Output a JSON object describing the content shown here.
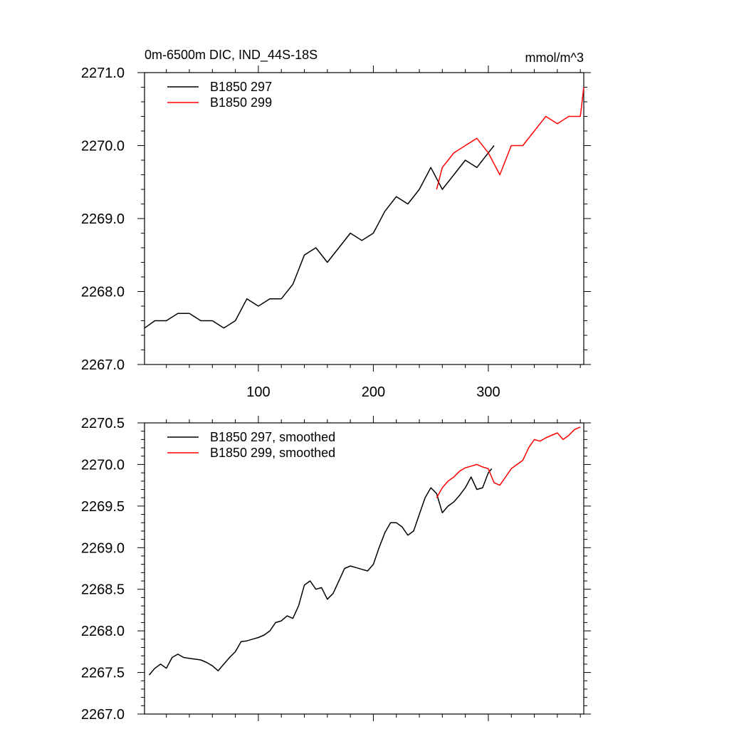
{
  "chart_data": [
    {
      "type": "line",
      "title": "0m-6500m DIC, IND_44S-18S",
      "units": "mmol/m^3",
      "xlabel": "",
      "ylabel": "",
      "xlim": [
        1,
        383
      ],
      "ylim": [
        2267.0,
        2271.0
      ],
      "xticks": [
        100,
        200,
        300
      ],
      "xtick_labels": [
        "100",
        "200",
        "300"
      ],
      "yticks": [
        2267.0,
        2268.0,
        2269.0,
        2270.0,
        2271.0
      ],
      "ytick_labels": [
        "2267.0",
        "2268.0",
        "2269.0",
        "2270.0",
        "2271.0"
      ],
      "legend_position": "top-left",
      "series": [
        {
          "name": "B1850 297",
          "color": "#000000",
          "x": [
            1,
            10,
            20,
            30,
            40,
            50,
            60,
            70,
            80,
            90,
            100,
            110,
            120,
            130,
            140,
            150,
            160,
            170,
            180,
            190,
            200,
            210,
            220,
            230,
            240,
            250,
            260,
            270,
            280,
            290,
            300,
            305
          ],
          "values": [
            2267.5,
            2267.6,
            2267.6,
            2267.7,
            2267.7,
            2267.6,
            2267.6,
            2267.5,
            2267.6,
            2267.9,
            2267.8,
            2267.9,
            2267.9,
            2268.1,
            2268.5,
            2268.6,
            2268.4,
            2268.6,
            2268.8,
            2268.7,
            2268.8,
            2269.1,
            2269.3,
            2269.2,
            2269.4,
            2269.7,
            2269.4,
            2269.6,
            2269.8,
            2269.7,
            2269.9,
            2270.0
          ]
        },
        {
          "name": "B1850 299",
          "color": "#ff0000",
          "x": [
            255,
            260,
            270,
            280,
            290,
            300,
            310,
            320,
            330,
            340,
            350,
            360,
            370,
            380,
            383
          ],
          "values": [
            2269.4,
            2269.7,
            2269.9,
            2270.0,
            2270.1,
            2269.9,
            2269.6,
            2270.0,
            2270.0,
            2270.2,
            2270.4,
            2270.3,
            2270.4,
            2270.4,
            2270.8
          ]
        }
      ]
    },
    {
      "type": "line",
      "title": "",
      "xlabel": "",
      "ylabel": "",
      "xlim": [
        1,
        383
      ],
      "ylim": [
        2267.0,
        2270.5
      ],
      "xticks": [
        100,
        200,
        300
      ],
      "xtick_labels": [],
      "yticks": [
        2267.0,
        2267.5,
        2268.0,
        2268.5,
        2269.0,
        2269.5,
        2270.0,
        2270.5
      ],
      "ytick_labels": [
        "2267.0",
        "2267.5",
        "2268.0",
        "2268.5",
        "2269.0",
        "2269.5",
        "2270.0",
        "2270.5"
      ],
      "legend_position": "top-left",
      "series": [
        {
          "name": "B1850 297, smoothed",
          "color": "#000000",
          "x": [
            5,
            10,
            15,
            20,
            25,
            30,
            35,
            40,
            45,
            50,
            55,
            60,
            65,
            70,
            75,
            80,
            85,
            90,
            95,
            100,
            105,
            110,
            115,
            120,
            125,
            130,
            135,
            140,
            145,
            150,
            155,
            160,
            165,
            170,
            175,
            180,
            185,
            190,
            195,
            200,
            205,
            210,
            215,
            220,
            225,
            230,
            235,
            240,
            245,
            250,
            255,
            260,
            265,
            270,
            275,
            280,
            285,
            290,
            295,
            300,
            303
          ],
          "values": [
            2267.47,
            2267.55,
            2267.6,
            2267.55,
            2267.68,
            2267.72,
            2267.68,
            2267.67,
            2267.66,
            2267.65,
            2267.62,
            2267.58,
            2267.52,
            2267.6,
            2267.68,
            2267.75,
            2267.87,
            2267.88,
            2267.9,
            2267.92,
            2267.95,
            2268.0,
            2268.1,
            2268.12,
            2268.18,
            2268.15,
            2268.3,
            2268.55,
            2268.6,
            2268.5,
            2268.52,
            2268.38,
            2268.45,
            2268.6,
            2268.75,
            2268.78,
            2268.76,
            2268.74,
            2268.72,
            2268.8,
            2269.0,
            2269.18,
            2269.3,
            2269.3,
            2269.25,
            2269.15,
            2269.2,
            2269.4,
            2269.6,
            2269.72,
            2269.65,
            2269.42,
            2269.5,
            2269.55,
            2269.63,
            2269.72,
            2269.85,
            2269.7,
            2269.72,
            2269.9,
            2269.95
          ]
        },
        {
          "name": "B1850 299, smoothed",
          "color": "#ff0000",
          "x": [
            255,
            260,
            265,
            270,
            275,
            280,
            285,
            290,
            295,
            300,
            305,
            310,
            315,
            320,
            325,
            330,
            335,
            340,
            345,
            350,
            355,
            360,
            365,
            370,
            375,
            380
          ],
          "values": [
            2269.6,
            2269.72,
            2269.8,
            2269.85,
            2269.92,
            2269.96,
            2269.98,
            2270.0,
            2269.97,
            2269.95,
            2269.78,
            2269.75,
            2269.85,
            2269.95,
            2270.0,
            2270.05,
            2270.2,
            2270.3,
            2270.28,
            2270.32,
            2270.35,
            2270.38,
            2270.3,
            2270.35,
            2270.42,
            2270.45
          ]
        }
      ]
    }
  ]
}
